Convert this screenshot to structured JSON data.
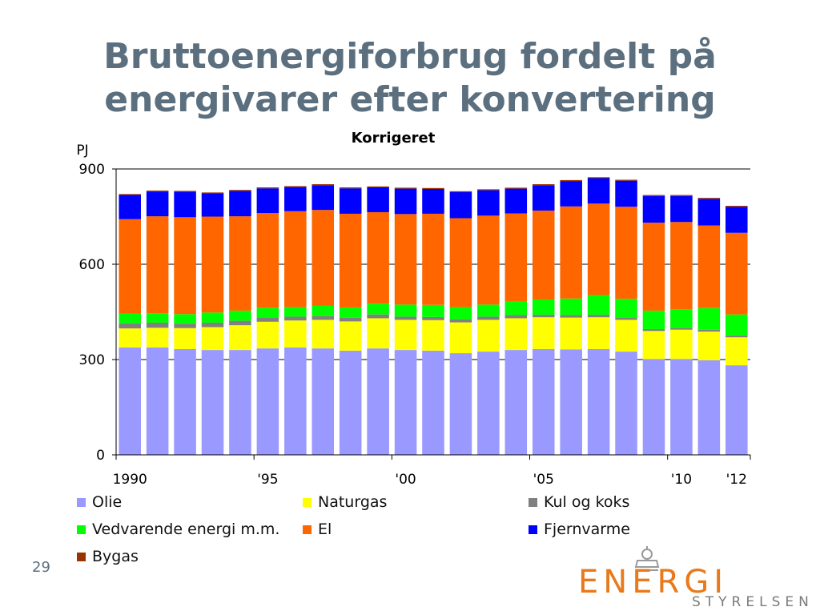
{
  "slide": {
    "title_line1": "Bruttoenergiforbrug fordelt på",
    "title_line2": "energivarer efter konvertering",
    "page_number": "29"
  },
  "logo": {
    "main_text": "ENERGI",
    "sub_text": "STYRELSEN"
  },
  "chart_data": {
    "type": "bar",
    "stacked": true,
    "title": "Korrigeret",
    "ylabel": "PJ",
    "ylim": [
      0,
      900
    ],
    "yticks": [
      0,
      300,
      600,
      900
    ],
    "grid": "horizontal",
    "legend_position": "bottom",
    "categories": [
      "1990",
      "1991",
      "1992",
      "1993",
      "1994",
      "1995",
      "1996",
      "1997",
      "1998",
      "1999",
      "2000",
      "2001",
      "2002",
      "2003",
      "2004",
      "2005",
      "2006",
      "2007",
      "2008",
      "2009",
      "2010",
      "2011",
      "2012"
    ],
    "xtick_labels": [
      {
        "index": 0,
        "label": "1990"
      },
      {
        "index": 5,
        "label": "'95"
      },
      {
        "index": 10,
        "label": "'00"
      },
      {
        "index": 15,
        "label": "'05"
      },
      {
        "index": 20,
        "label": "'10"
      },
      {
        "index": 22,
        "label": "'12"
      }
    ],
    "series": [
      {
        "name": "Olie",
        "color": "#9999ff",
        "values": [
          338,
          338,
          333,
          330,
          330,
          335,
          338,
          335,
          328,
          335,
          330,
          328,
          320,
          325,
          330,
          333,
          332,
          333,
          325,
          302,
          302,
          298,
          282
        ]
      },
      {
        "name": "Naturgas",
        "color": "#ffff00",
        "values": [
          60,
          62,
          66,
          72,
          78,
          84,
          85,
          90,
          92,
          95,
          95,
          96,
          97,
          100,
          100,
          100,
          100,
          100,
          100,
          88,
          92,
          90,
          88
        ]
      },
      {
        "name": "Kul og koks",
        "color": "#808080",
        "values": [
          16,
          16,
          14,
          14,
          14,
          14,
          12,
          12,
          12,
          12,
          10,
          10,
          10,
          10,
          10,
          8,
          8,
          8,
          6,
          6,
          6,
          6,
          6
        ]
      },
      {
        "name": "Vedvarende energi m.m.",
        "color": "#00ff00",
        "values": [
          30,
          30,
          30,
          32,
          32,
          30,
          30,
          32,
          32,
          34,
          38,
          38,
          38,
          38,
          42,
          48,
          52,
          62,
          60,
          58,
          58,
          68,
          66
        ]
      },
      {
        "name": "El",
        "color": "#ff6600",
        "values": [
          298,
          305,
          305,
          302,
          297,
          298,
          302,
          302,
          295,
          288,
          285,
          287,
          280,
          280,
          278,
          280,
          290,
          288,
          290,
          277,
          275,
          260,
          257
        ]
      },
      {
        "name": "Fjernvarme",
        "color": "#0000ff",
        "values": [
          76,
          78,
          80,
          73,
          80,
          78,
          76,
          78,
          80,
          78,
          80,
          78,
          82,
          80,
          78,
          80,
          80,
          80,
          82,
          84,
          82,
          84,
          82
        ]
      },
      {
        "name": "Bygas",
        "color": "#993300",
        "values": [
          3,
          3,
          3,
          3,
          3,
          3,
          3,
          3,
          3,
          3,
          3,
          3,
          3,
          3,
          3,
          3,
          3,
          3,
          3,
          3,
          3,
          3,
          3
        ]
      }
    ]
  }
}
